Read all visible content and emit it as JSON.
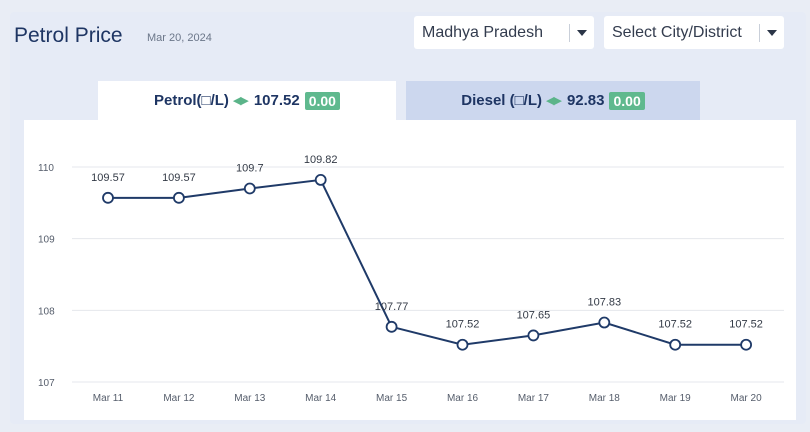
{
  "header": {
    "title": "Petrol Price",
    "date": "Mar 20, 2024"
  },
  "filters": {
    "state": "Madhya Pradesh",
    "city": "Select City/District"
  },
  "tabs": [
    {
      "label": "Petrol(□/L)",
      "price": "107.52",
      "change": "0.00"
    },
    {
      "label": "Diesel (□/L)",
      "price": "92.83",
      "change": "0.00"
    }
  ],
  "colors": {
    "line": "#1f3a68",
    "change_badge": "#5fb98e",
    "active_tab": "#ffffff",
    "inactive_tab": "#ccd7ee"
  },
  "chart_data": {
    "type": "line",
    "categories": [
      "Mar 11",
      "Mar 12",
      "Mar 13",
      "Mar 14",
      "Mar 15",
      "Mar 16",
      "Mar 17",
      "Mar 18",
      "Mar 19",
      "Mar 20"
    ],
    "values": [
      109.57,
      109.57,
      109.7,
      109.82,
      107.77,
      107.52,
      107.65,
      107.83,
      107.52,
      107.52
    ],
    "data_labels": [
      "109.57",
      "109.57",
      "109.7",
      "109.82",
      "107.77",
      "107.52",
      "107.65",
      "107.83",
      "107.52",
      "107.52"
    ],
    "yticks": [
      "107",
      "108",
      "109",
      "110"
    ],
    "ylim": [
      107,
      110
    ],
    "grid": true,
    "legend": "none"
  }
}
